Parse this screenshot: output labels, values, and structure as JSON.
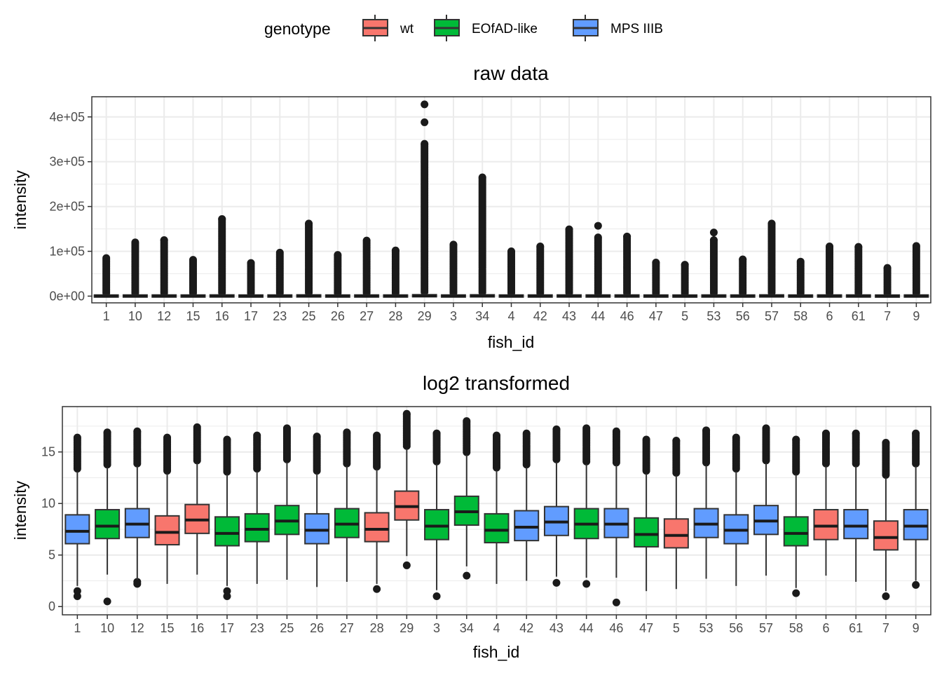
{
  "legend": {
    "title": "genotype",
    "entries": [
      {
        "label": "wt",
        "color": "#F8766D"
      },
      {
        "label": "EOfAD-like",
        "color": "#00BA38"
      },
      {
        "label": "MPS IIIB",
        "color": "#619CFF"
      }
    ]
  },
  "chart_data": [
    {
      "type": "boxplot",
      "title": "raw data",
      "xlabel": "fish_id",
      "ylabel": "intensity",
      "ylim": [
        -15000,
        445000
      ],
      "y_ticks": [
        0,
        100000,
        200000,
        300000,
        400000
      ],
      "y_tick_labels": [
        "0e+00",
        "1e+05",
        "2e+05",
        "3e+05",
        "4e+05"
      ],
      "categories": [
        "1",
        "10",
        "12",
        "15",
        "16",
        "17",
        "23",
        "25",
        "26",
        "27",
        "28",
        "29",
        "3",
        "34",
        "4",
        "42",
        "43",
        "44",
        "46",
        "47",
        "5",
        "53",
        "56",
        "57",
        "58",
        "6",
        "61",
        "7",
        "9"
      ],
      "genotype": [
        "MPS IIIB",
        "EOfAD-like",
        "MPS IIIB",
        "wt",
        "wt",
        "EOfAD-like",
        "EOfAD-like",
        "EOfAD-like",
        "MPS IIIB",
        "EOfAD-like",
        "wt",
        "wt",
        "EOfAD-like",
        "EOfAD-like",
        "EOfAD-like",
        "MPS IIIB",
        "MPS IIIB",
        "EOfAD-like",
        "MPS IIIB",
        "EOfAD-like",
        "wt",
        "MPS IIIB",
        "MPS IIIB",
        "MPS IIIB",
        "EOfAD-like",
        "wt",
        "MPS IIIB",
        "wt",
        "MPS IIIB"
      ],
      "q1": [
        90,
        100,
        110,
        95,
        140,
        80,
        100,
        200,
        90,
        110,
        110,
        350,
        110,
        250,
        100,
        105,
        130,
        110,
        120,
        80,
        70,
        110,
        90,
        180,
        80,
        110,
        110,
        50,
        100
      ],
      "median": [
        170,
        200,
        220,
        190,
        300,
        160,
        220,
        400,
        190,
        240,
        210,
        700,
        220,
        490,
        190,
        220,
        270,
        230,
        250,
        160,
        140,
        230,
        180,
        390,
        160,
        250,
        240,
        110,
        220
      ],
      "q3": [
        350,
        420,
        450,
        390,
        620,
        330,
        430,
        750,
        360,
        480,
        420,
        1400,
        450,
        1050,
        380,
        440,
        540,
        480,
        510,
        320,
        280,
        460,
        350,
        760,
        320,
        490,
        460,
        230,
        460
      ],
      "whisker_low": [
        0,
        0,
        0,
        0,
        0,
        0,
        0,
        0,
        0,
        0,
        0,
        0,
        0,
        0,
        0,
        0,
        0,
        0,
        0,
        0,
        0,
        0,
        0,
        0,
        0,
        0,
        0,
        0,
        0
      ],
      "whisker_high": [
        750,
        900,
        1000,
        850,
        1400,
        710,
        940,
        1650,
        800,
        1050,
        920,
        3000,
        1000,
        2300,
        850,
        970,
        1200,
        1050,
        1120,
        700,
        620,
        1000,
        770,
        1650,
        700,
        1080,
        1020,
        490,
        1000
      ],
      "outlier_max": [
        85000,
        120000,
        125000,
        81000,
        172000,
        74000,
        97000,
        162000,
        92000,
        124000,
        102000,
        340000,
        115000,
        265000,
        100000,
        111000,
        149000,
        131000,
        133000,
        75000,
        70000,
        125000,
        82000,
        162000,
        77000,
        111000,
        110000,
        63000,
        112000
      ],
      "extra_outliers": [
        {
          "category": "29",
          "values": [
            388000,
            428000
          ]
        },
        {
          "category": "44",
          "values": [
            157000
          ]
        },
        {
          "category": "53",
          "values": [
            142000
          ]
        }
      ]
    },
    {
      "type": "boxplot",
      "title": "log2 transformed",
      "xlabel": "fish_id",
      "ylabel": "intensity",
      "ylim": [
        -0.8,
        19.4
      ],
      "y_ticks": [
        0,
        5,
        10,
        15
      ],
      "y_tick_labels": [
        "0",
        "5",
        "10",
        "15"
      ],
      "categories": [
        "1",
        "10",
        "12",
        "15",
        "16",
        "17",
        "23",
        "25",
        "26",
        "27",
        "28",
        "29",
        "3",
        "34",
        "4",
        "42",
        "43",
        "44",
        "46",
        "47",
        "5",
        "53",
        "56",
        "57",
        "58",
        "6",
        "61",
        "7",
        "9"
      ],
      "genotype": [
        "MPS IIIB",
        "EOfAD-like",
        "MPS IIIB",
        "wt",
        "wt",
        "EOfAD-like",
        "EOfAD-like",
        "EOfAD-like",
        "MPS IIIB",
        "EOfAD-like",
        "wt",
        "wt",
        "EOfAD-like",
        "EOfAD-like",
        "EOfAD-like",
        "MPS IIIB",
        "MPS IIIB",
        "EOfAD-like",
        "MPS IIIB",
        "EOfAD-like",
        "wt",
        "MPS IIIB",
        "MPS IIIB",
        "MPS IIIB",
        "EOfAD-like",
        "wt",
        "MPS IIIB",
        "wt",
        "MPS IIIB"
      ],
      "q1": [
        6.1,
        6.6,
        6.7,
        6.0,
        7.1,
        5.9,
        6.3,
        7.0,
        6.1,
        6.7,
        6.3,
        8.4,
        6.5,
        7.9,
        6.2,
        6.4,
        6.9,
        6.6,
        6.7,
        5.8,
        5.7,
        6.7,
        6.1,
        7.0,
        5.9,
        6.5,
        6.6,
        5.5,
        6.5
      ],
      "median": [
        7.3,
        7.8,
        8.0,
        7.2,
        8.4,
        7.1,
        7.5,
        8.3,
        7.4,
        8.0,
        7.5,
        9.7,
        7.8,
        9.2,
        7.4,
        7.7,
        8.2,
        8.0,
        8.0,
        7.0,
        6.9,
        8.0,
        7.4,
        8.3,
        7.1,
        7.8,
        7.8,
        6.7,
        7.8
      ],
      "q3": [
        8.9,
        9.4,
        9.5,
        8.8,
        9.9,
        8.7,
        9.0,
        9.8,
        9.0,
        9.5,
        9.1,
        11.2,
        9.4,
        10.7,
        9.0,
        9.3,
        9.7,
        9.5,
        9.5,
        8.6,
        8.5,
        9.5,
        8.9,
        9.8,
        8.7,
        9.4,
        9.4,
        8.3,
        9.4
      ],
      "whisker_low": [
        2.0,
        3.1,
        2.6,
        2.2,
        3.1,
        2.0,
        2.2,
        2.6,
        1.9,
        2.4,
        2.2,
        4.9,
        1.6,
        3.9,
        2.2,
        2.5,
        2.9,
        2.8,
        2.8,
        1.5,
        1.7,
        2.7,
        2.0,
        3.0,
        1.8,
        3.0,
        2.4,
        1.5,
        2.5
      ],
      "whisker_high": [
        13.1,
        13.5,
        13.6,
        12.9,
        13.9,
        12.8,
        13.1,
        14.0,
        12.9,
        13.6,
        13.3,
        15.3,
        13.8,
        14.7,
        13.2,
        13.5,
        14.0,
        13.8,
        13.7,
        12.9,
        12.7,
        13.7,
        13.1,
        13.9,
        12.8,
        13.6,
        13.6,
        12.5,
        13.6
      ],
      "outlier_max": [
        16.4,
        16.9,
        17.0,
        16.4,
        17.4,
        16.2,
        16.6,
        17.3,
        16.5,
        16.9,
        16.6,
        18.7,
        16.8,
        18.0,
        16.6,
        16.8,
        17.2,
        17.3,
        17.0,
        16.2,
        16.1,
        17.1,
        16.4,
        17.3,
        16.2,
        16.8,
        16.8,
        15.9,
        16.8
      ],
      "low_outliers": [
        [
          1.0,
          1.5
        ],
        [
          0.5
        ],
        [
          2.2,
          2.4
        ],
        [],
        [],
        [
          1.0,
          1.5
        ],
        [],
        [],
        [],
        [],
        [
          1.7
        ],
        [
          4.0
        ],
        [
          1.0
        ],
        [
          3.0
        ],
        [],
        [],
        [
          2.3
        ],
        [
          2.2
        ],
        [
          0.4
        ],
        [],
        [],
        [],
        [],
        [],
        [
          1.3
        ],
        [],
        [],
        [
          1.0
        ],
        [
          2.1
        ]
      ]
    }
  ]
}
